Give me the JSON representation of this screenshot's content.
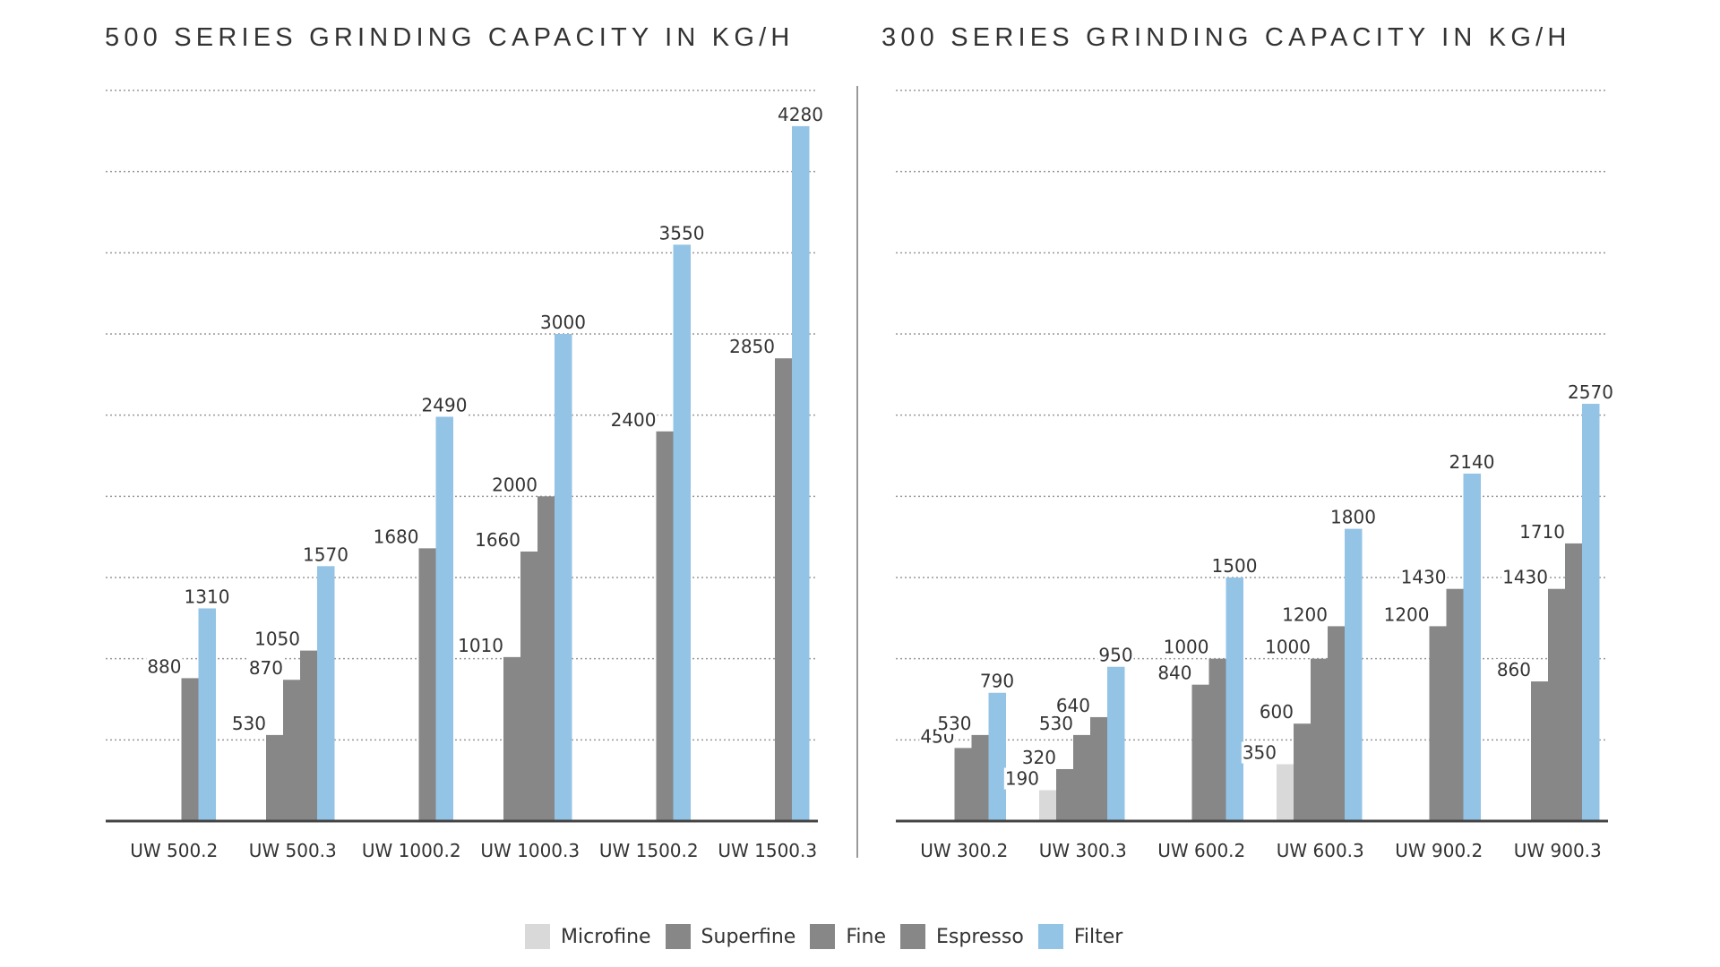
{
  "chart_data": [
    {
      "type": "bar",
      "title": "500 SERIES GRINDING CAPACITY IN KG/H",
      "xlabel": "",
      "ylabel": "",
      "ylim": [
        0,
        4500
      ],
      "grid": true,
      "categories": [
        "UW 500.2",
        "UW 500.3",
        "UW 1000.2",
        "UW 1000.3",
        "UW 1500.2",
        "UW 1500.3"
      ],
      "series": [
        {
          "name": "Microfine",
          "values": [
            null,
            null,
            null,
            null,
            null,
            null
          ]
        },
        {
          "name": "Superfine",
          "values": [
            null,
            530,
            null,
            1010,
            null,
            null
          ]
        },
        {
          "name": "Fine",
          "values": [
            null,
            870,
            null,
            1660,
            null,
            null
          ]
        },
        {
          "name": "Espresso",
          "values": [
            880,
            1050,
            1680,
            2000,
            2400,
            2850
          ]
        },
        {
          "name": "Filter",
          "values": [
            1310,
            1570,
            2490,
            3000,
            3550,
            4280
          ]
        }
      ]
    },
    {
      "type": "bar",
      "title": "300 SERIES GRINDING CAPACITY IN KG/H",
      "xlabel": "",
      "ylabel": "",
      "ylim": [
        0,
        4500
      ],
      "grid": true,
      "categories": [
        "UW 300.2",
        "UW 300.3",
        "UW 600.2",
        "UW 600.3",
        "UW 900.2",
        "UW 900.3"
      ],
      "series": [
        {
          "name": "Microfine",
          "values": [
            null,
            190,
            null,
            350,
            null,
            null
          ]
        },
        {
          "name": "Superfine",
          "values": [
            null,
            320,
            null,
            600,
            null,
            860
          ]
        },
        {
          "name": "Fine",
          "values": [
            450,
            530,
            840,
            1000,
            1200,
            1430
          ]
        },
        {
          "name": "Espresso",
          "values": [
            530,
            640,
            1000,
            1200,
            1430,
            1710
          ]
        },
        {
          "name": "Filter",
          "values": [
            790,
            950,
            1500,
            1800,
            2140,
            2570
          ]
        }
      ]
    }
  ],
  "legend": {
    "position": "bottom-center",
    "items": [
      {
        "label": "Microfine",
        "color": "#d9d9d9"
      },
      {
        "label": "Superfine",
        "color": "#878787"
      },
      {
        "label": "Fine",
        "color": "#878787"
      },
      {
        "label": "Espresso",
        "color": "#878787"
      },
      {
        "label": "Filter",
        "color": "#93c4e6"
      }
    ]
  },
  "colors": {
    "microfine": "#d9d9d9",
    "gray_bar": "#878787",
    "filter": "#93c4e6",
    "axis": "#444444",
    "grid": "#999999",
    "divider": "#9a9a9a"
  }
}
